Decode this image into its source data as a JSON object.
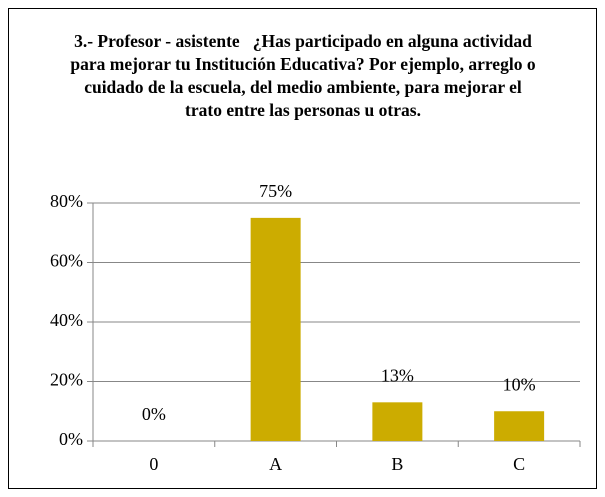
{
  "chart_data": {
    "type": "bar",
    "title": "3.- Profesor - asistente   ¿Has participado en alguna actividad para mejorar tu Institución Educativa? Por ejemplo, arreglo o cuidado de la escuela, del medio ambiente, para mejorar el trato entre las personas u otras.",
    "categories": [
      "0",
      "A",
      "B",
      "C"
    ],
    "values": [
      0,
      75,
      13,
      10
    ],
    "value_labels": [
      "0%",
      "75%",
      "13%",
      "10%"
    ],
    "color": "#ccac00",
    "ylim": [
      0,
      80
    ],
    "yticks": [
      {
        "value": 0,
        "label": "0%"
      },
      {
        "value": 20,
        "label": "20%"
      },
      {
        "value": 40,
        "label": "40%"
      },
      {
        "value": 60,
        "label": "60%"
      },
      {
        "value": 80,
        "label": "80%"
      }
    ],
    "grid": true
  }
}
